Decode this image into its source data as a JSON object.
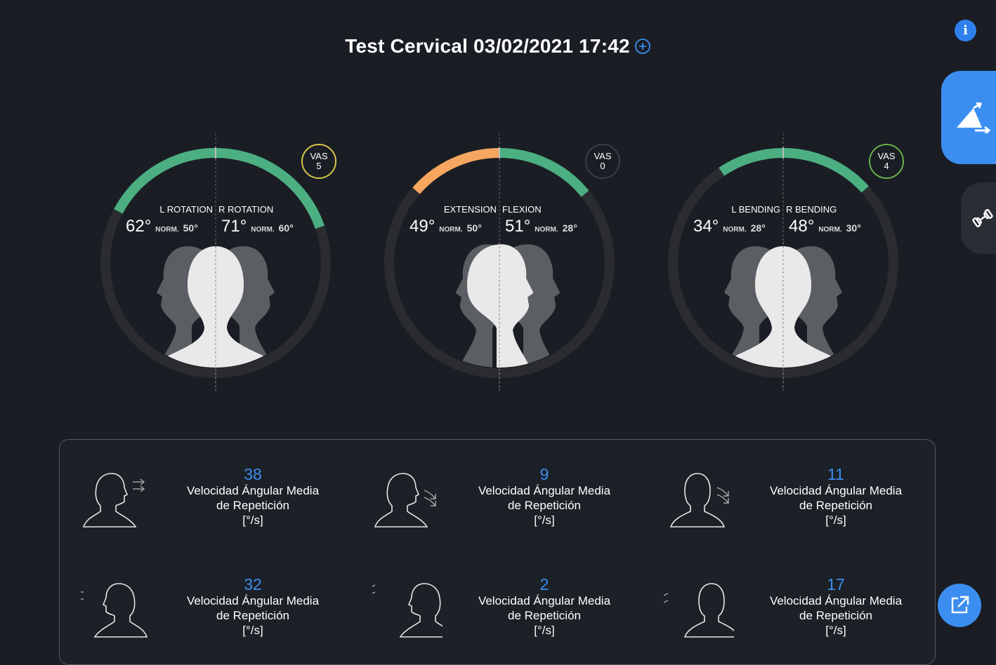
{
  "header": {
    "title": "Test Cervical 03/02/2021 17:42"
  },
  "colors": {
    "accent": "#3b8ef0",
    "good": "#4caf82",
    "warn": "#f7a660",
    "track": "#2a2c30"
  },
  "icons": {
    "info": "info-icon",
    "add": "plus-circle-icon",
    "range": "range-of-motion-icon",
    "exercise": "dumbbell-icon",
    "share": "external-link-icon"
  },
  "gauges": [
    {
      "left_label": "L ROTATION",
      "right_label": "R ROTATION",
      "left_value": "62°",
      "left_norm_label": "NORM.",
      "left_norm": "50°",
      "right_value": "71°",
      "right_norm_label": "NORM.",
      "right_norm": "60°",
      "left_deg": 62,
      "right_deg": 71,
      "scale_max": 90,
      "left_color": "#4caf82",
      "right_color": "#4caf82",
      "vas_label": "VAS",
      "vas_value": "5",
      "vas_color": "#d8c64a"
    },
    {
      "left_label": "EXTENSION",
      "right_label": "FLEXION",
      "left_value": "49°",
      "left_norm_label": "NORM.",
      "left_norm": "50°",
      "right_value": "51°",
      "right_norm_label": "NORM.",
      "right_norm": "28°",
      "left_deg": 49,
      "right_deg": 51,
      "scale_max": 90,
      "left_color": "#f7a660",
      "right_color": "#4caf82",
      "vas_label": "VAS",
      "vas_value": "0",
      "vas_color": "#3a3d42"
    },
    {
      "left_label": "L BENDING",
      "right_label": "R BENDING",
      "left_value": "34°",
      "left_norm_label": "NORM.",
      "left_norm": "28°",
      "right_value": "48°",
      "right_norm_label": "NORM.",
      "right_norm": "30°",
      "left_deg": 34,
      "right_deg": 48,
      "scale_max": 90,
      "left_color": "#4caf82",
      "right_color": "#4caf82",
      "vas_label": "VAS",
      "vas_value": "4",
      "vas_color": "#6ab04c"
    }
  ],
  "metrics": [
    {
      "value": "38",
      "line1": "Velocidad Ángular Media",
      "line2": "de Repetición",
      "unit": "[°/s]"
    },
    {
      "value": "9",
      "line1": "Velocidad Ángular Media",
      "line2": "de Repetición",
      "unit": "[°/s]"
    },
    {
      "value": "11",
      "line1": "Velocidad Ángular Media",
      "line2": "de Repetición",
      "unit": "[°/s]"
    },
    {
      "value": "32",
      "line1": "Velocidad Ángular Media",
      "line2": "de Repetición",
      "unit": "[°/s]"
    },
    {
      "value": "2",
      "line1": "Velocidad Ángular Media",
      "line2": "de Repetición",
      "unit": "[°/s]"
    },
    {
      "value": "17",
      "line1": "Velocidad Ángular Media",
      "line2": "de Repetición",
      "unit": "[°/s]"
    }
  ]
}
